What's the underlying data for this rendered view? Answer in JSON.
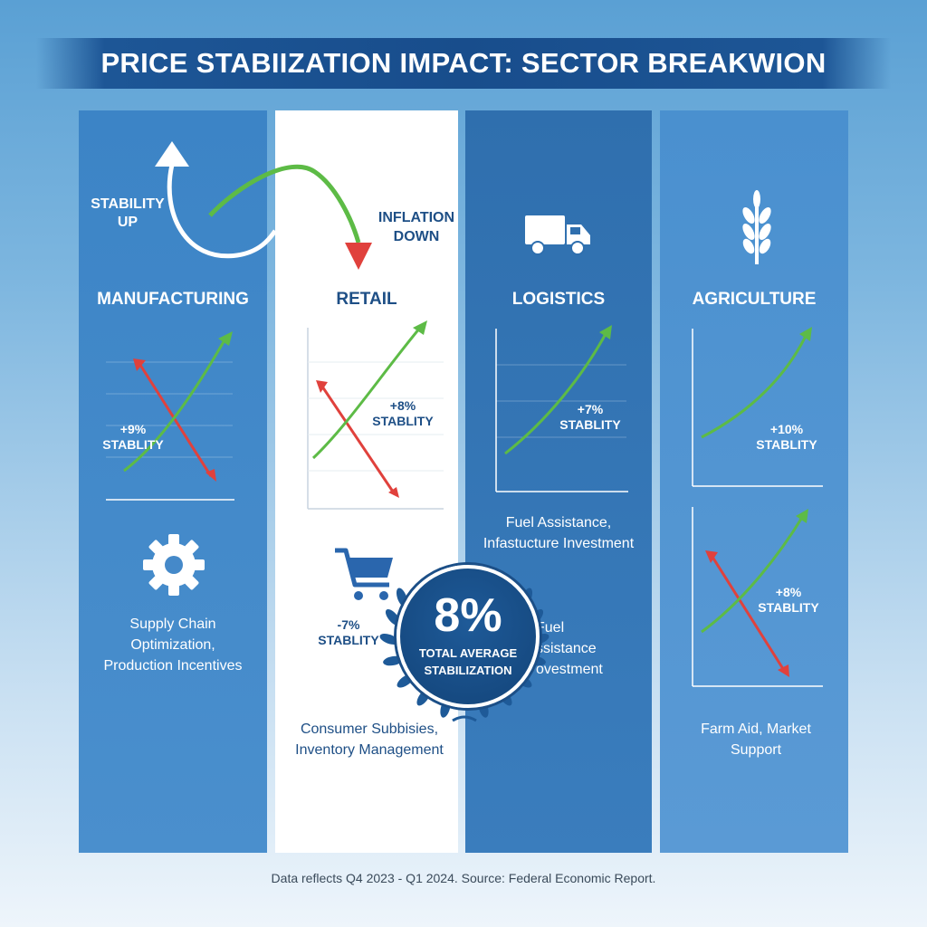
{
  "title": "PRICE STABIIZATION IMPACT: SECTOR BREAKWION",
  "trend_labels": {
    "up": "STABILITY UP",
    "down": "INFLATION DOWN"
  },
  "sectors": [
    {
      "name": "MANUFACTURING",
      "chart_label": "+9% STABLITY",
      "description": "Supply Chain Optimization, Production Incentives",
      "icon": "gear-icon"
    },
    {
      "name": "RETAIL",
      "chart_label": "+8% STABLITY",
      "secondary_label": "-7% STABLITY",
      "description": "Consumer Subbisies, Inventory Management",
      "icon": "shopping-cart-icon"
    },
    {
      "name": "LOGISTICS",
      "chart_label": "+7% STABLITY",
      "description": "Fuel Assistance, Infastucture Investment",
      "secondary_description": "Fuel ssistance ovestment",
      "icon": "truck-icon"
    },
    {
      "name": "AGRICULTURE",
      "chart_label": "+10% STABLITY",
      "secondary_label": "+8% STABLITY",
      "description": "Farm Aid, Market Support",
      "icon": "wheat-icon"
    }
  ],
  "badge": {
    "value": "8%",
    "label": "TOTAL AVERAGE STABILIZATION"
  },
  "footer": "Data reflects Q4 2023 - Q1 2024. Source: Federal Economic Report.",
  "colors": {
    "up": "#5dbb46",
    "down": "#e0413c",
    "banner": "#184d8c",
    "badge": "#134479"
  }
}
